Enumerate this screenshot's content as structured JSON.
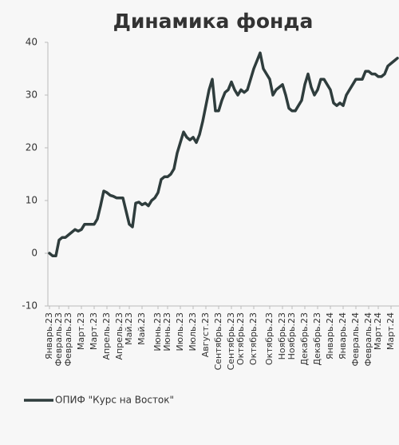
{
  "chart_data": {
    "type": "line",
    "title": "Динамика фонда",
    "categories": [
      "Январь.23",
      null,
      null,
      "Февраль.23",
      null,
      null,
      "Февраль.23",
      null,
      null,
      null,
      "Март.23",
      null,
      null,
      null,
      "Март.23",
      null,
      null,
      null,
      "Апрель.23",
      null,
      null,
      null,
      "Апрель.23",
      null,
      null,
      "Май.23",
      null,
      null,
      null,
      "Май.23",
      null,
      null,
      null,
      null,
      "Июнь.23",
      null,
      null,
      "Июнь.23",
      null,
      null,
      null,
      "Июль.23",
      null,
      null,
      null,
      "Июль.23",
      null,
      null,
      null,
      "Август.23",
      null,
      null,
      null,
      "Сентябрь.23",
      null,
      null,
      null,
      "Сентябрь.23",
      null,
      null,
      "Октябрь.23",
      null,
      null,
      null,
      "Октябрь.23",
      null,
      null,
      null,
      null,
      "Октябрь.23",
      null,
      null,
      null,
      "Ноябрь.23",
      null,
      null,
      "Ноябрь.23",
      null,
      null,
      null,
      "Декабрь.23",
      null,
      null,
      null,
      "Декабрь.23",
      null,
      null,
      null,
      "Январь.24",
      null,
      null,
      null,
      "Январь.24",
      null,
      null,
      null,
      "Февраль.24",
      null,
      null,
      null,
      "Февраль.24",
      null,
      null,
      "Март.24",
      null,
      null,
      null,
      "Март.24",
      null,
      null
    ],
    "series": [
      {
        "name": "ОПИФ \"Курс на Восток\"",
        "color": "#2f3d3d",
        "values": [
          0,
          -0.5,
          -0.5,
          2.5,
          3,
          3,
          3.5,
          4,
          4.5,
          4.2,
          4.5,
          5.5,
          5.5,
          5.5,
          5.5,
          6.5,
          9,
          11.8,
          11.5,
          11,
          10.8,
          10.5,
          10.5,
          10.5,
          8,
          5.5,
          5,
          9.5,
          9.7,
          9.2,
          9.5,
          9,
          10,
          10.5,
          11.5,
          14,
          14.5,
          14.5,
          15,
          16,
          19,
          21,
          23,
          22,
          21.5,
          22,
          21,
          22.5,
          25,
          28,
          31,
          33,
          27,
          27,
          29,
          30.5,
          31,
          32.5,
          31,
          30,
          31,
          30.5,
          31,
          33,
          35,
          36.5,
          38,
          35,
          34,
          33,
          30,
          31,
          31.5,
          32,
          30,
          27.5,
          27,
          27,
          28,
          29,
          32,
          34,
          31.5,
          30,
          31,
          33,
          33,
          32,
          31,
          28.5,
          28,
          28.5,
          28,
          30,
          31,
          32,
          33,
          33,
          33,
          34.5,
          34.5,
          34,
          34,
          33.5,
          33.5,
          34,
          35.5,
          36,
          36.5,
          37
        ]
      }
    ],
    "ylim": [
      -10,
      40
    ],
    "yticks": [
      -10,
      0,
      10,
      20,
      30,
      40
    ],
    "grid": false,
    "legend": "bottom-left"
  }
}
